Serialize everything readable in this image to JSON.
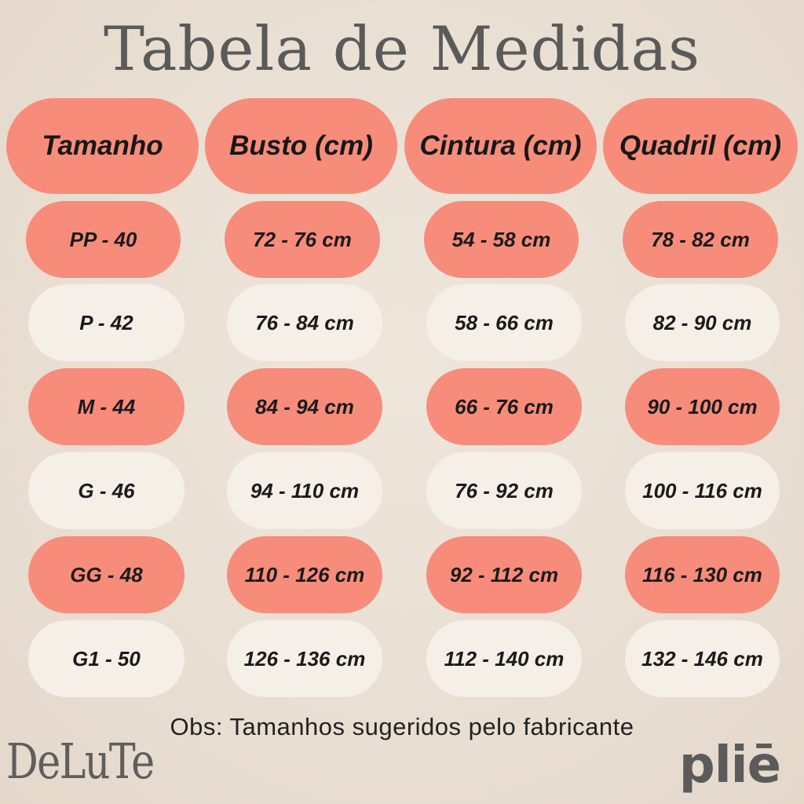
{
  "title": "Tabela de Medidas",
  "headers": [
    "Tamanho",
    "Busto (cm)",
    "Cintura (cm)",
    "Quadril (cm)"
  ],
  "rows": [
    {
      "size": "PP - 40",
      "busto": "72 - 76 cm",
      "cintura": "54 - 58 cm",
      "quadril": "78 - 82 cm",
      "style": "coral"
    },
    {
      "size": "P - 42",
      "busto": "76 - 84 cm",
      "cintura": "58 - 66 cm",
      "quadril": "82 - 90 cm",
      "style": "cream"
    },
    {
      "size": "M - 44",
      "busto": "84 - 94 cm",
      "cintura": "66 - 76 cm",
      "quadril": "90 - 100 cm",
      "style": "coral"
    },
    {
      "size": "G - 46",
      "busto": "94 - 110 cm",
      "cintura": "76 - 92 cm",
      "quadril": "100 - 116 cm",
      "style": "cream"
    },
    {
      "size": "GG - 48",
      "busto": "110 - 126 cm",
      "cintura": "92 - 112 cm",
      "quadril": "116 - 130 cm",
      "style": "coral"
    },
    {
      "size": "G1 - 50",
      "busto": "126 - 136 cm",
      "cintura": "112 - 140 cm",
      "quadril": "132 - 146 cm",
      "style": "cream"
    }
  ],
  "note": "Obs: Tamanhos sugeridos pelo fabricante",
  "brands": {
    "left": "DeLuTe",
    "right": "pliē"
  },
  "colors": {
    "coral": "#f78c7b",
    "cream": "#f5efe8",
    "background": "#ebe1d6"
  }
}
